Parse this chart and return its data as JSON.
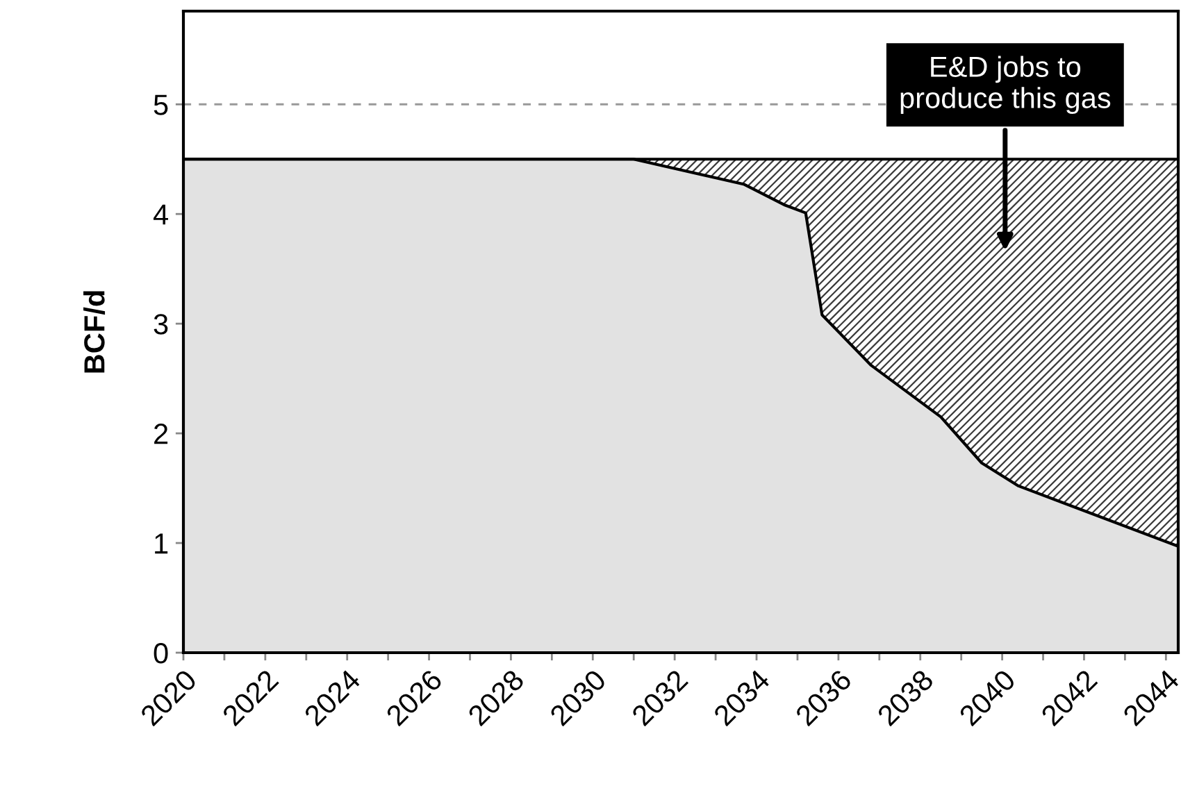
{
  "chart_data": {
    "type": "area",
    "stacked": true,
    "ylabel": "BCF/d",
    "x": [
      2020,
      2031,
      2033.7,
      2034.7,
      2035.2,
      2035.6,
      2036.8,
      2038.5,
      2039.5,
      2040.4,
      2044.3
    ],
    "series": [
      {
        "color": "#e2e2e2",
        "values": [
          4.5,
          4.5,
          4.27,
          4.08,
          4.01,
          3.08,
          2.62,
          2.15,
          1.73,
          1.52,
          0.97
        ]
      },
      {
        "color": "#3a3a3a",
        "values": [
          0,
          0,
          0.23,
          0.42,
          0.49,
          1.42,
          1.88,
          2.35,
          2.77,
          2.98,
          3.53
        ]
      }
    ],
    "xlim": [
      2020,
      2044.3
    ],
    "xticks": [
      2020,
      {
        "value": 2021,
        "label": null
      },
      2022,
      {
        "value": 2023,
        "label": null
      },
      2024,
      {
        "value": 2025,
        "label": null
      },
      2026,
      {
        "value": 2027,
        "label": null
      },
      2028,
      {
        "value": 2029,
        "label": null
      },
      2030,
      {
        "value": 2031,
        "label": null
      },
      2032,
      {
        "value": 2033,
        "label": null
      },
      2034,
      {
        "value": 2035,
        "label": null
      },
      2036,
      {
        "value": 2037,
        "label": null
      },
      2038,
      {
        "value": 2039,
        "label": null
      },
      2040,
      {
        "value": 2041,
        "label": null
      },
      2042,
      {
        "value": 2043,
        "label": null
      },
      2044
    ],
    "ylim": [
      0,
      5.85
    ],
    "yticks": [
      0,
      1,
      2,
      3,
      4,
      5
    ],
    "ref_lines": [
      {
        "axis": "y",
        "value": 5,
        "color": "#999999",
        "line_style": "dashed"
      }
    ],
    "annotations": [
      "E&D jobs to\nproduce this gas"
    ],
    "grid": false,
    "legend": false
  }
}
